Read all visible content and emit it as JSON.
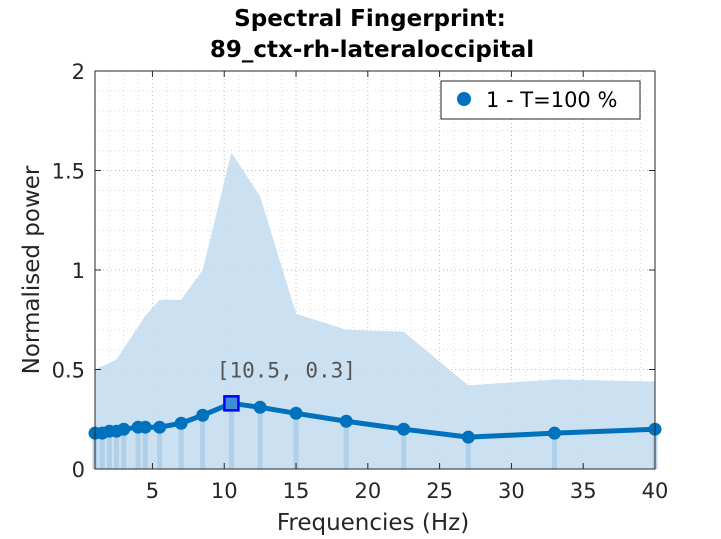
{
  "chart_data": {
    "type": "line",
    "title": [
      "Spectral Fingerprint:",
      "89_ctx-rh-lateraloccipital"
    ],
    "xlabel": "Frequencies (Hz)",
    "ylabel": "Normalised power",
    "xlim": [
      1,
      40
    ],
    "ylim": [
      0,
      2
    ],
    "xticks": [
      5,
      10,
      15,
      20,
      25,
      30,
      35,
      40
    ],
    "yticks": [
      0,
      0.5,
      1,
      1.5,
      2
    ],
    "ytick_labels": [
      "0",
      "0.5",
      "1",
      "1.5",
      "2"
    ],
    "grid": "minor-dotted",
    "legend": {
      "placement": "top-right",
      "entries": [
        "1 - T=100 %"
      ]
    },
    "series": [
      {
        "name": "1 - T=100 %",
        "color": "#0072BD",
        "x": [
          1,
          1.5,
          2,
          2.5,
          3,
          4,
          4.5,
          5.5,
          7,
          8.5,
          10.5,
          12.5,
          15,
          18.5,
          22.5,
          27,
          33,
          40
        ],
        "y": [
          0.18,
          0.18,
          0.19,
          0.19,
          0.2,
          0.21,
          0.21,
          0.21,
          0.23,
          0.27,
          0.33,
          0.31,
          0.28,
          0.24,
          0.2,
          0.16,
          0.18,
          0.2
        ]
      }
    ],
    "band": {
      "color": "#c5ddef",
      "x": [
        1,
        2.5,
        4.5,
        5.5,
        7,
        8.5,
        10.5,
        12.5,
        15,
        18.5,
        22.5,
        27,
        33,
        40
      ],
      "upper": [
        0.5,
        0.55,
        0.77,
        0.85,
        0.85,
        1.0,
        1.59,
        1.37,
        0.78,
        0.7,
        0.69,
        0.42,
        0.45,
        0.44
      ],
      "lower": [
        0,
        0,
        0,
        0,
        0,
        0,
        0,
        0,
        0,
        0,
        0,
        0,
        0,
        0
      ]
    },
    "highlight": {
      "x": 10.5,
      "y": 0.33,
      "label": "[10.5, 0.3]",
      "color": "#0000ff"
    }
  }
}
